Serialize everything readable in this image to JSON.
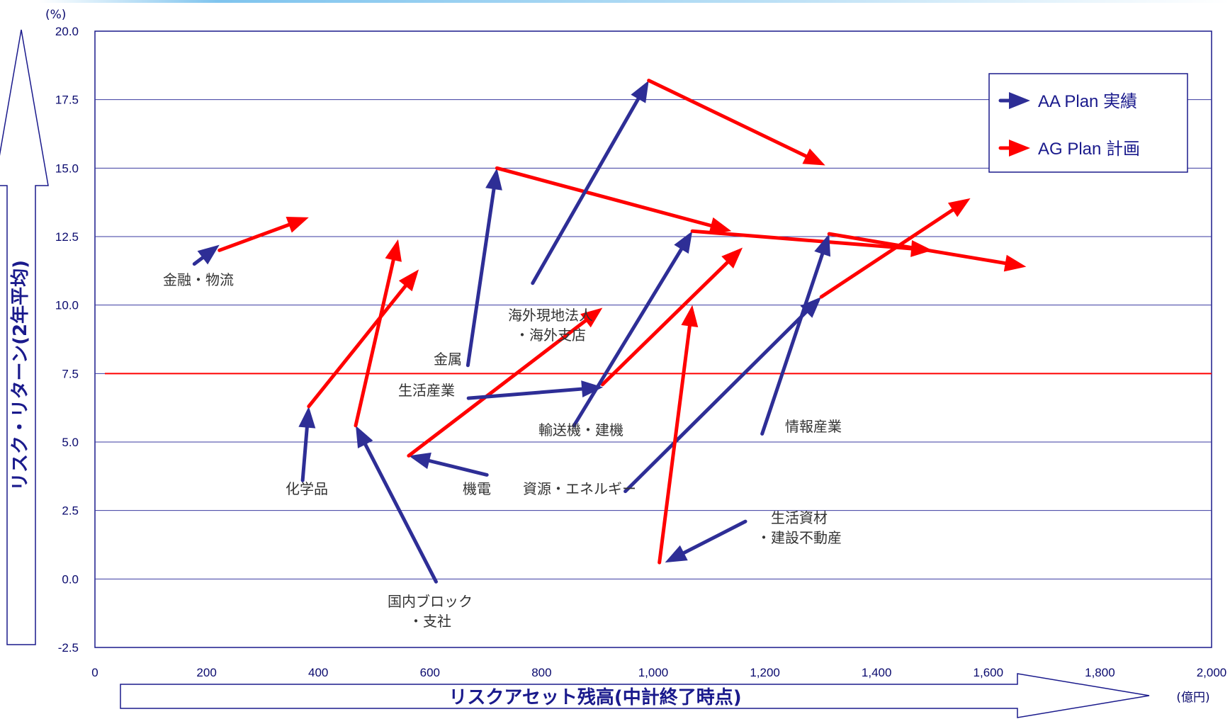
{
  "chart_data": {
    "type": "scatter",
    "y_unit": "(%)",
    "x_unit": "(億円)",
    "xlabel": "リスクアセット残高(中計終了時点)",
    "ylabel": "リスク・リターン(2年平均)",
    "xlim": [
      0,
      2000
    ],
    "ylim": [
      -2.5,
      20.0
    ],
    "x_ticks": [
      "0",
      "200",
      "400",
      "600",
      "800",
      "1,000",
      "1,200",
      "1,400",
      "1,600",
      "1,800",
      "2,000"
    ],
    "x_tick_values": [
      0,
      200,
      400,
      600,
      800,
      1000,
      1200,
      1400,
      1600,
      1800,
      2000
    ],
    "y_ticks": [
      "-2.5",
      "0.0",
      "2.5",
      "5.0",
      "7.5",
      "10.0",
      "12.5",
      "15.0",
      "17.5",
      "20.0"
    ],
    "y_tick_values": [
      -2.5,
      0,
      2.5,
      5,
      7.5,
      10,
      12.5,
      15,
      17.5,
      20
    ],
    "grid": "horizontal",
    "reference_line_y": 7.5,
    "legend_position": "top-right",
    "colors": {
      "actual": "#2e2e96",
      "plan": "#ff0000",
      "axis": "#1a1a8c",
      "grid": "#3a3aa0"
    },
    "series": [
      {
        "name": "AA Plan 実績",
        "color": "actual"
      },
      {
        "name": "AG Plan 計画",
        "color": "plan"
      }
    ],
    "segments": [
      {
        "label": "金融・物流",
        "actual": [
          [
            178,
            11.5
          ],
          [
            223,
            12.2
          ]
        ],
        "plan": [
          [
            223,
            12.0
          ],
          [
            383,
            13.2
          ]
        ]
      },
      {
        "label": "化学品",
        "actual": [
          [
            372,
            3.6
          ],
          [
            383,
            6.3
          ]
        ],
        "plan": [
          [
            383,
            6.3
          ],
          [
            580,
            11.3
          ]
        ]
      },
      {
        "label": "国内ブロック\n・支社",
        "actual": [
          [
            611,
            -0.1
          ],
          [
            467,
            5.6
          ]
        ],
        "plan": [
          [
            467,
            5.6
          ],
          [
            543,
            12.4
          ]
        ]
      },
      {
        "label": "機電",
        "actual": [
          [
            702,
            3.8
          ],
          [
            562,
            4.5
          ]
        ],
        "plan": [
          [
            562,
            4.5
          ],
          [
            909,
            9.9
          ]
        ]
      },
      {
        "label": "金属",
        "actual": [
          [
            668,
            7.8
          ],
          [
            720,
            15.0
          ]
        ],
        "plan": [
          [
            720,
            15.0
          ],
          [
            1140,
            12.7
          ]
        ]
      },
      {
        "label": "生活産業",
        "actual": [
          [
            669,
            6.6
          ],
          [
            910,
            7.0
          ]
        ],
        "plan": [
          [
            909,
            7.1
          ],
          [
            1160,
            12.1
          ]
        ]
      },
      {
        "label": "海外現地法人\n・海外支店",
        "actual": [
          [
            784,
            10.8
          ],
          [
            992,
            18.2
          ]
        ],
        "plan": [
          [
            992,
            18.2
          ],
          [
            1308,
            15.1
          ]
        ]
      },
      {
        "label": "輸送機・建機",
        "actual": [
          [
            858,
            5.6
          ],
          [
            1070,
            12.7
          ]
        ],
        "plan": [
          [
            1070,
            12.7
          ],
          [
            1500,
            12.0
          ]
        ]
      },
      {
        "label": "資源・エネルギー",
        "actual": [
          [
            950,
            3.2
          ],
          [
            1301,
            10.3
          ]
        ],
        "plan": [
          [
            1301,
            10.3
          ],
          [
            1568,
            13.9
          ]
        ]
      },
      {
        "label": "生活資材\n・建設不動産",
        "actual": [
          [
            1165,
            2.1
          ],
          [
            1021,
            0.6
          ]
        ],
        "plan": [
          [
            1011,
            0.6
          ],
          [
            1070,
            10.0
          ]
        ]
      },
      {
        "label": "情報産業",
        "actual": [
          [
            1195,
            5.3
          ],
          [
            1315,
            12.6
          ]
        ],
        "plan": [
          [
            1315,
            12.6
          ],
          [
            1668,
            11.4
          ]
        ]
      }
    ]
  }
}
